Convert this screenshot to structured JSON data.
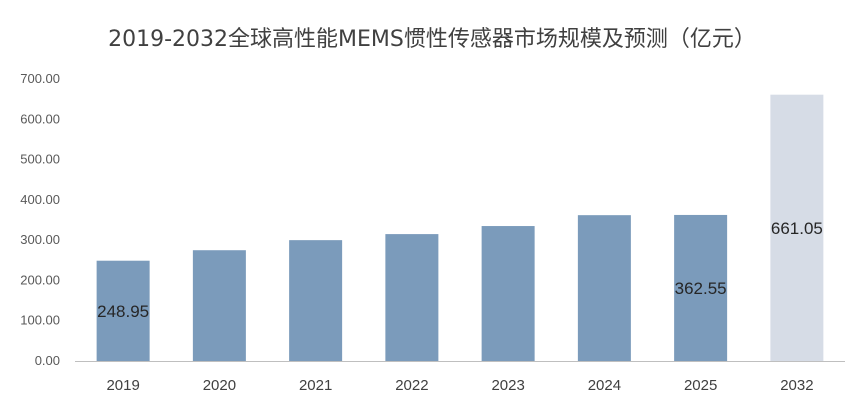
{
  "chart_data": {
    "type": "bar",
    "title": "2019-2032全球高性能MEMS惯性传感器市场规模及预测（亿元）",
    "xlabel": "",
    "ylabel": "",
    "categories": [
      "2019",
      "2020",
      "2021",
      "2022",
      "2023",
      "2024",
      "2025",
      "2032"
    ],
    "values": [
      248.95,
      275,
      300,
      315,
      335,
      362,
      362.55,
      661.05
    ],
    "data_labels": [
      {
        "category": "2019",
        "text": "248.95"
      },
      {
        "category": "2025",
        "text": "362.55"
      },
      {
        "category": "2032",
        "text": "661.05"
      }
    ],
    "ylim": [
      0,
      700
    ],
    "yticks": [
      "0.00",
      "100.00",
      "200.00",
      "300.00",
      "400.00",
      "500.00",
      "600.00",
      "700.00"
    ],
    "grid": false,
    "legend": "none",
    "colors": {
      "actual": "#7b9bbb",
      "forecast": "#d6dce6",
      "axis": "#bfbfbf"
    },
    "forecast_categories": [
      "2032"
    ]
  }
}
